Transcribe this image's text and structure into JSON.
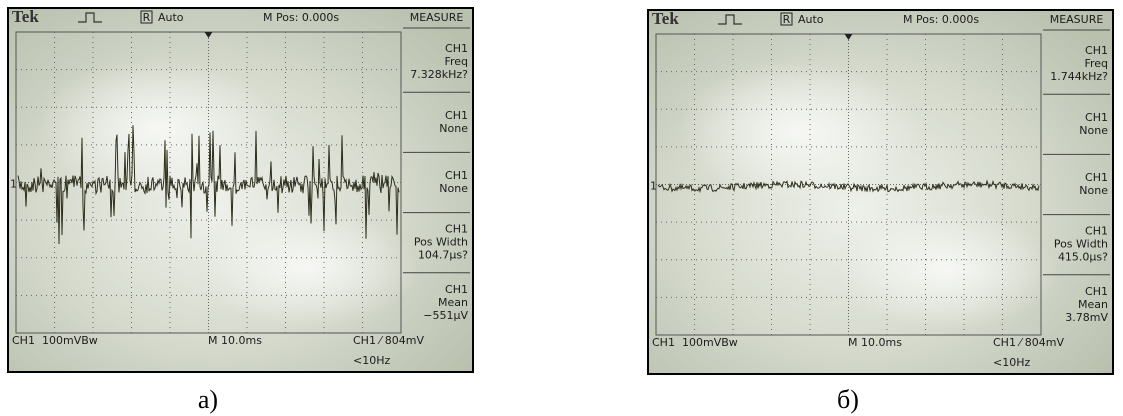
{
  "panels": [
    {
      "header": {
        "brand": "Tek",
        "run_state": "R",
        "trigger_mode": "Auto",
        "position": "M Pos: 0.000s"
      },
      "marker": "1",
      "measure": {
        "title": "MEASURE",
        "items": [
          [
            "CH1",
            "Freq",
            "7.328kHz?"
          ],
          [
            "CH1",
            "None"
          ],
          [
            "CH1",
            "None"
          ],
          [
            "CH1",
            "Pos Width",
            "104.7µs?"
          ],
          [
            "CH1",
            "Mean",
            "−551µV"
          ]
        ]
      },
      "footer": {
        "channel": "CH1",
        "scale": "100mVBw",
        "timebase": "M 10.0ms",
        "trigger": "CH1 ⁄ 804mV",
        "filter": "<10Hz"
      },
      "caption": "а)"
    },
    {
      "header": {
        "brand": "Tek",
        "run_state": "R",
        "trigger_mode": "Auto",
        "position": "M Pos: 0.000s"
      },
      "marker": "1",
      "measure": {
        "title": "MEASURE",
        "items": [
          [
            "CH1",
            "Freq",
            "1.744kHz?"
          ],
          [
            "CH1",
            "None"
          ],
          [
            "CH1",
            "None"
          ],
          [
            "CH1",
            "Pos Width",
            "415.0µs?"
          ],
          [
            "CH1",
            "Mean",
            "3.78mV"
          ]
        ]
      },
      "footer": {
        "channel": "CH1",
        "scale": "100mVBw",
        "timebase": "M 10.0ms",
        "trigger": "CH1 ⁄ 804mV",
        "filter": "<10Hz"
      },
      "caption": "б)"
    }
  ]
}
